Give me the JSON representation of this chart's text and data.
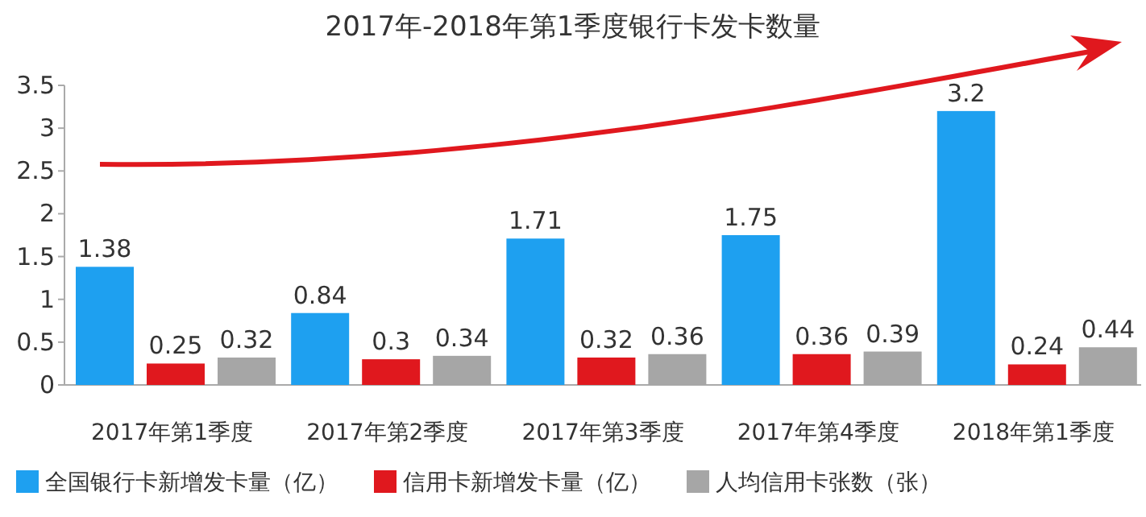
{
  "chart_data": {
    "type": "bar",
    "title": "2017年-2018年第1季度银行卡发卡数量",
    "categories": [
      "2017年第1季度",
      "2017年第2季度",
      "2017年第3季度",
      "2017年第4季度",
      "2018年第1季度"
    ],
    "series": [
      {
        "name": "全国银行卡新增发卡量（亿）",
        "color": "#1ea0f0",
        "values": [
          1.38,
          0.84,
          1.71,
          1.75,
          3.2
        ]
      },
      {
        "name": "信用卡新增发卡量（亿）",
        "color": "#e0181e",
        "values": [
          0.25,
          0.3,
          0.32,
          0.36,
          0.24
        ]
      },
      {
        "name": "人均信用卡张数（张）",
        "color": "#a6a6a6",
        "values": [
          0.32,
          0.34,
          0.36,
          0.39,
          0.44
        ]
      }
    ],
    "ylim": [
      0,
      3.5
    ],
    "yticks": [
      0,
      0.5,
      1,
      1.5,
      2,
      2.5,
      3,
      3.5
    ],
    "grid": false,
    "legend": "bottom",
    "data_labels": true
  }
}
